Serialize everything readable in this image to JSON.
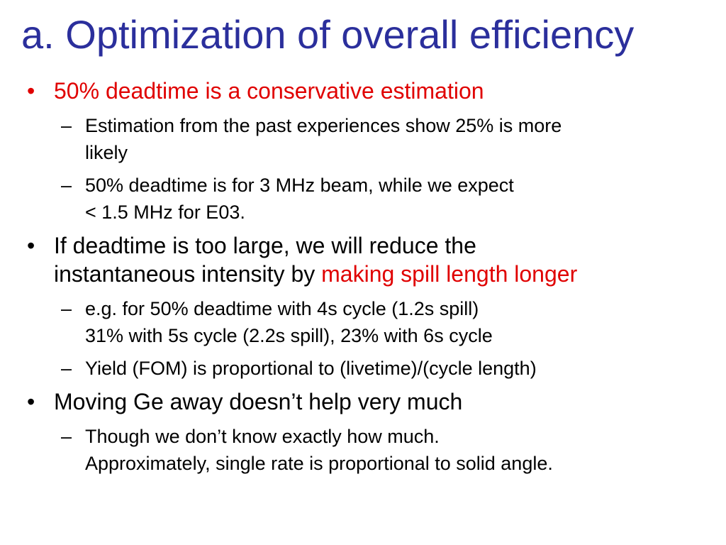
{
  "title": "a. Optimization of overall efficiency",
  "markers": {
    "bullet": "•",
    "dash": "–"
  },
  "colors": {
    "title": "#2b2f9c",
    "emphasis": "#e00000",
    "body": "#000000",
    "background": "#ffffff"
  },
  "bullets": [
    {
      "text": "50% deadtime is a conservative estimation",
      "subitems": [
        {
          "line1": "Estimation from the past experiences show 25% is more",
          "line2": "likely"
        },
        {
          "line1": "50% deadtime is for 3 MHz beam, while we expect",
          "line2": "< 1.5 MHz for E03."
        }
      ]
    },
    {
      "line1": "If deadtime is too large, we will reduce the",
      "line2_prefix": "instantaneous intensity by ",
      "line2_highlight": "making spill length longer",
      "subitems": [
        {
          "line1": "e.g. for 50% deadtime with 4s cycle (1.2s spill)",
          "line2": "31% with 5s cycle (2.2s spill), 23% with 6s cycle"
        },
        {
          "line1": "Yield (FOM) is proportional to (livetime)/(cycle length)"
        }
      ]
    },
    {
      "text": "Moving Ge away doesn’t help very much",
      "subitems": [
        {
          "line1": "Though we don’t know exactly how much.",
          "line2": "Approximately, single rate is proportional to solid angle."
        }
      ]
    }
  ]
}
